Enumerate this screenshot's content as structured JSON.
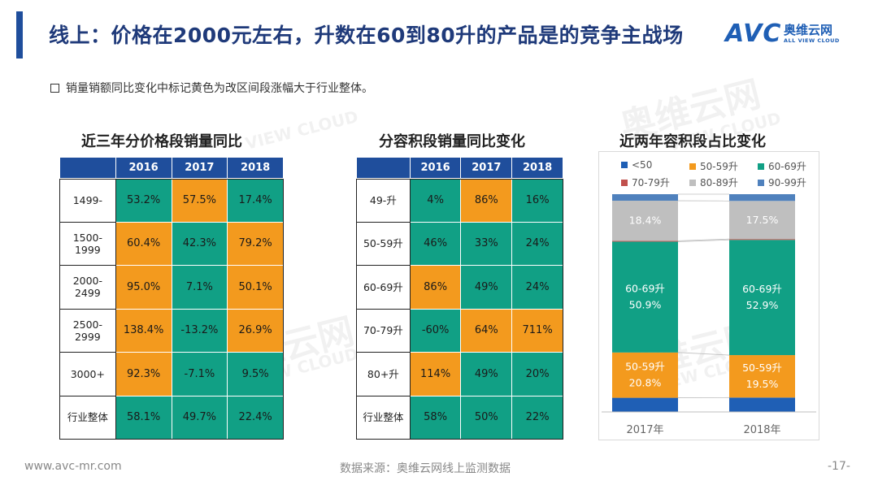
{
  "title": "线上：价格在2000元左右，升数在60到80升的产品是的竞争主战场",
  "logo": {
    "avc": "AVC",
    "cn": "奥维云网",
    "en": "ALL VIEW CLOUD"
  },
  "note": "销量销额同比变化中标记黄色为改区间段涨幅大于行业整体。",
  "watermark": {
    "cn": "奥维云网",
    "en": "VIEW CLOUD"
  },
  "price_table": {
    "title": "近三年分价格段销量同比",
    "headers": [
      "2016",
      "2017",
      "2018"
    ],
    "rows": [
      {
        "label": "1499-",
        "cells": [
          {
            "v": "53.2%",
            "c": "g"
          },
          {
            "v": "57.5%",
            "c": "o"
          },
          {
            "v": "17.4%",
            "c": "g"
          }
        ]
      },
      {
        "label": "1500-\n1999",
        "cells": [
          {
            "v": "60.4%",
            "c": "o"
          },
          {
            "v": "42.3%",
            "c": "g"
          },
          {
            "v": "79.2%",
            "c": "o"
          }
        ]
      },
      {
        "label": "2000-\n2499",
        "cells": [
          {
            "v": "95.0%",
            "c": "o"
          },
          {
            "v": "7.1%",
            "c": "g"
          },
          {
            "v": "50.1%",
            "c": "o"
          }
        ]
      },
      {
        "label": "2500-\n2999",
        "cells": [
          {
            "v": "138.4%",
            "c": "o"
          },
          {
            "v": "-13.2%",
            "c": "g"
          },
          {
            "v": "26.9%",
            "c": "o"
          }
        ]
      },
      {
        "label": "3000+",
        "cells": [
          {
            "v": "92.3%",
            "c": "o"
          },
          {
            "v": "-7.1%",
            "c": "g"
          },
          {
            "v": "9.5%",
            "c": "g"
          }
        ]
      },
      {
        "label": "行业整体",
        "cells": [
          {
            "v": "58.1%",
            "c": "g"
          },
          {
            "v": "49.7%",
            "c": "g"
          },
          {
            "v": "22.4%",
            "c": "g"
          }
        ]
      }
    ]
  },
  "volume_table": {
    "title": "分容积段销量同比变化",
    "headers": [
      "2016",
      "2017",
      "2018"
    ],
    "rows": [
      {
        "label": "49-升",
        "cells": [
          {
            "v": "4%",
            "c": "g"
          },
          {
            "v": "86%",
            "c": "o"
          },
          {
            "v": "16%",
            "c": "g"
          }
        ]
      },
      {
        "label": "50-59升",
        "cells": [
          {
            "v": "46%",
            "c": "g"
          },
          {
            "v": "33%",
            "c": "g"
          },
          {
            "v": "24%",
            "c": "g"
          }
        ]
      },
      {
        "label": "60-69升",
        "cells": [
          {
            "v": "86%",
            "c": "o"
          },
          {
            "v": "49%",
            "c": "g"
          },
          {
            "v": "24%",
            "c": "g"
          }
        ]
      },
      {
        "label": "70-79升",
        "cells": [
          {
            "v": "-60%",
            "c": "g"
          },
          {
            "v": "64%",
            "c": "o"
          },
          {
            "v": "711%",
            "c": "o"
          }
        ]
      },
      {
        "label": "80+升",
        "cells": [
          {
            "v": "114%",
            "c": "o"
          },
          {
            "v": "49%",
            "c": "g"
          },
          {
            "v": "20%",
            "c": "g"
          }
        ]
      },
      {
        "label": "行业整体",
        "cells": [
          {
            "v": "58%",
            "c": "g"
          },
          {
            "v": "50%",
            "c": "g"
          },
          {
            "v": "22%",
            "c": "g"
          }
        ]
      }
    ]
  },
  "colors": {
    "green": "#11a085",
    "orange": "#f39a1e",
    "navy": "#1f4e9c"
  },
  "chart_data": {
    "type": "bar",
    "stacked": true,
    "title": "近两年容积段占比变化",
    "categories": [
      "2017年",
      "2018年"
    ],
    "series": [
      {
        "name": "<50",
        "color": "#1f5fb5",
        "values": [
          6.5,
          6.6
        ],
        "labels": [
          "",
          ""
        ]
      },
      {
        "name": "50-59升",
        "color": "#f39a1e",
        "values": [
          20.8,
          19.5
        ],
        "labels": [
          "50-59升\n20.8%",
          "50-59升\n19.5%"
        ]
      },
      {
        "name": "60-69升",
        "color": "#11a085",
        "values": [
          50.9,
          52.9
        ],
        "labels": [
          "60-69升\n50.9%",
          "60-69升\n52.9%"
        ]
      },
      {
        "name": "70-79升",
        "color": "#c0504d",
        "values": [
          0.4,
          0.4
        ],
        "labels": [
          "",
          ""
        ]
      },
      {
        "name": "80-89升",
        "color": "#bfbfbf",
        "values": [
          18.4,
          17.5
        ],
        "labels": [
          "18.4%",
          "17.5%"
        ]
      },
      {
        "name": "90-99升",
        "color": "#4f81bd",
        "values": [
          3.0,
          3.1
        ],
        "labels": [
          "",
          ""
        ]
      }
    ],
    "ylim": [
      0,
      100
    ],
    "legend_position": "top",
    "xlabel": "",
    "ylabel": ""
  },
  "footer": {
    "site": "www.avc-mr.com",
    "source": "数据来源：奥维云网线上监测数据",
    "page": "-17-"
  }
}
